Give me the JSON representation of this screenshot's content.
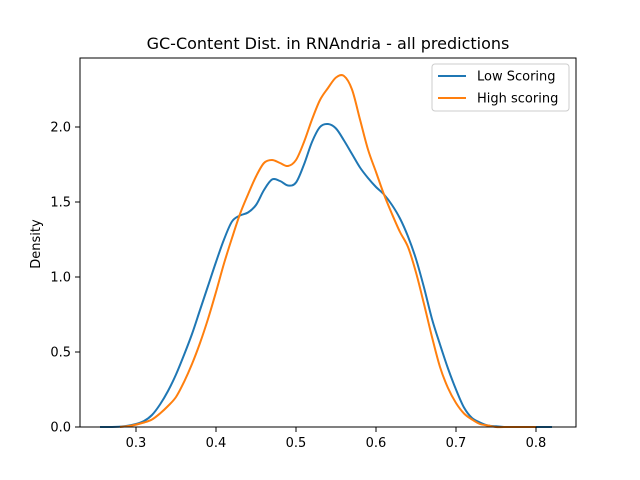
{
  "chart_data": {
    "type": "line",
    "title": "GC-Content Dist. in RNAndria - all predictions",
    "xlabel": "",
    "ylabel": "Density",
    "xlim": [
      0.23,
      0.85
    ],
    "ylim": [
      0,
      2.46
    ],
    "xticks": [
      0.3,
      0.4,
      0.5,
      0.6,
      0.7,
      0.8
    ],
    "xtick_labels": [
      "0.3",
      "0.4",
      "0.5",
      "0.6",
      "0.7",
      "0.8"
    ],
    "yticks": [
      0,
      0.5,
      1.0,
      1.5,
      2.0
    ],
    "ytick_labels": [
      "0.0",
      "0.5",
      "1.0",
      "1.5",
      "2.0"
    ],
    "grid": false,
    "legend_position": "top-right",
    "series": [
      {
        "name": "Low Scoring",
        "color": "#1f77b4",
        "x": [
          0.255,
          0.27,
          0.285,
          0.3,
          0.31,
          0.32,
          0.33,
          0.34,
          0.35,
          0.36,
          0.37,
          0.38,
          0.39,
          0.4,
          0.41,
          0.42,
          0.43,
          0.44,
          0.45,
          0.46,
          0.47,
          0.48,
          0.49,
          0.5,
          0.51,
          0.52,
          0.53,
          0.54,
          0.55,
          0.56,
          0.57,
          0.58,
          0.59,
          0.6,
          0.61,
          0.62,
          0.63,
          0.64,
          0.65,
          0.66,
          0.67,
          0.68,
          0.69,
          0.7,
          0.71,
          0.72,
          0.73,
          0.74,
          0.75,
          0.76,
          0.78,
          0.8,
          0.82
        ],
        "y": [
          0.0,
          0.0,
          0.005,
          0.02,
          0.04,
          0.08,
          0.15,
          0.24,
          0.35,
          0.48,
          0.62,
          0.78,
          0.94,
          1.1,
          1.25,
          1.37,
          1.41,
          1.43,
          1.48,
          1.58,
          1.65,
          1.64,
          1.61,
          1.63,
          1.75,
          1.9,
          2.0,
          2.02,
          1.99,
          1.91,
          1.82,
          1.73,
          1.66,
          1.6,
          1.55,
          1.48,
          1.39,
          1.27,
          1.12,
          0.93,
          0.72,
          0.55,
          0.39,
          0.25,
          0.13,
          0.06,
          0.03,
          0.01,
          0.005,
          0.0,
          0.0,
          0.0,
          0.0
        ]
      },
      {
        "name": "High scoring",
        "color": "#ff7f0e",
        "x": [
          0.28,
          0.295,
          0.31,
          0.32,
          0.33,
          0.34,
          0.35,
          0.36,
          0.37,
          0.38,
          0.39,
          0.4,
          0.41,
          0.42,
          0.43,
          0.44,
          0.45,
          0.46,
          0.47,
          0.48,
          0.49,
          0.5,
          0.51,
          0.52,
          0.53,
          0.54,
          0.55,
          0.56,
          0.57,
          0.58,
          0.59,
          0.6,
          0.61,
          0.62,
          0.63,
          0.64,
          0.65,
          0.66,
          0.67,
          0.68,
          0.69,
          0.7,
          0.71,
          0.72,
          0.73,
          0.74,
          0.75,
          0.76,
          0.78,
          0.8
        ],
        "y": [
          0.0,
          0.01,
          0.03,
          0.05,
          0.09,
          0.14,
          0.2,
          0.3,
          0.42,
          0.56,
          0.72,
          0.9,
          1.09,
          1.26,
          1.42,
          1.55,
          1.67,
          1.76,
          1.78,
          1.76,
          1.74,
          1.78,
          1.9,
          2.05,
          2.18,
          2.26,
          2.33,
          2.34,
          2.25,
          2.05,
          1.85,
          1.7,
          1.55,
          1.42,
          1.3,
          1.2,
          1.03,
          0.82,
          0.6,
          0.4,
          0.26,
          0.16,
          0.09,
          0.05,
          0.02,
          0.01,
          0.0,
          0.0,
          0.0,
          0.0
        ]
      }
    ]
  }
}
